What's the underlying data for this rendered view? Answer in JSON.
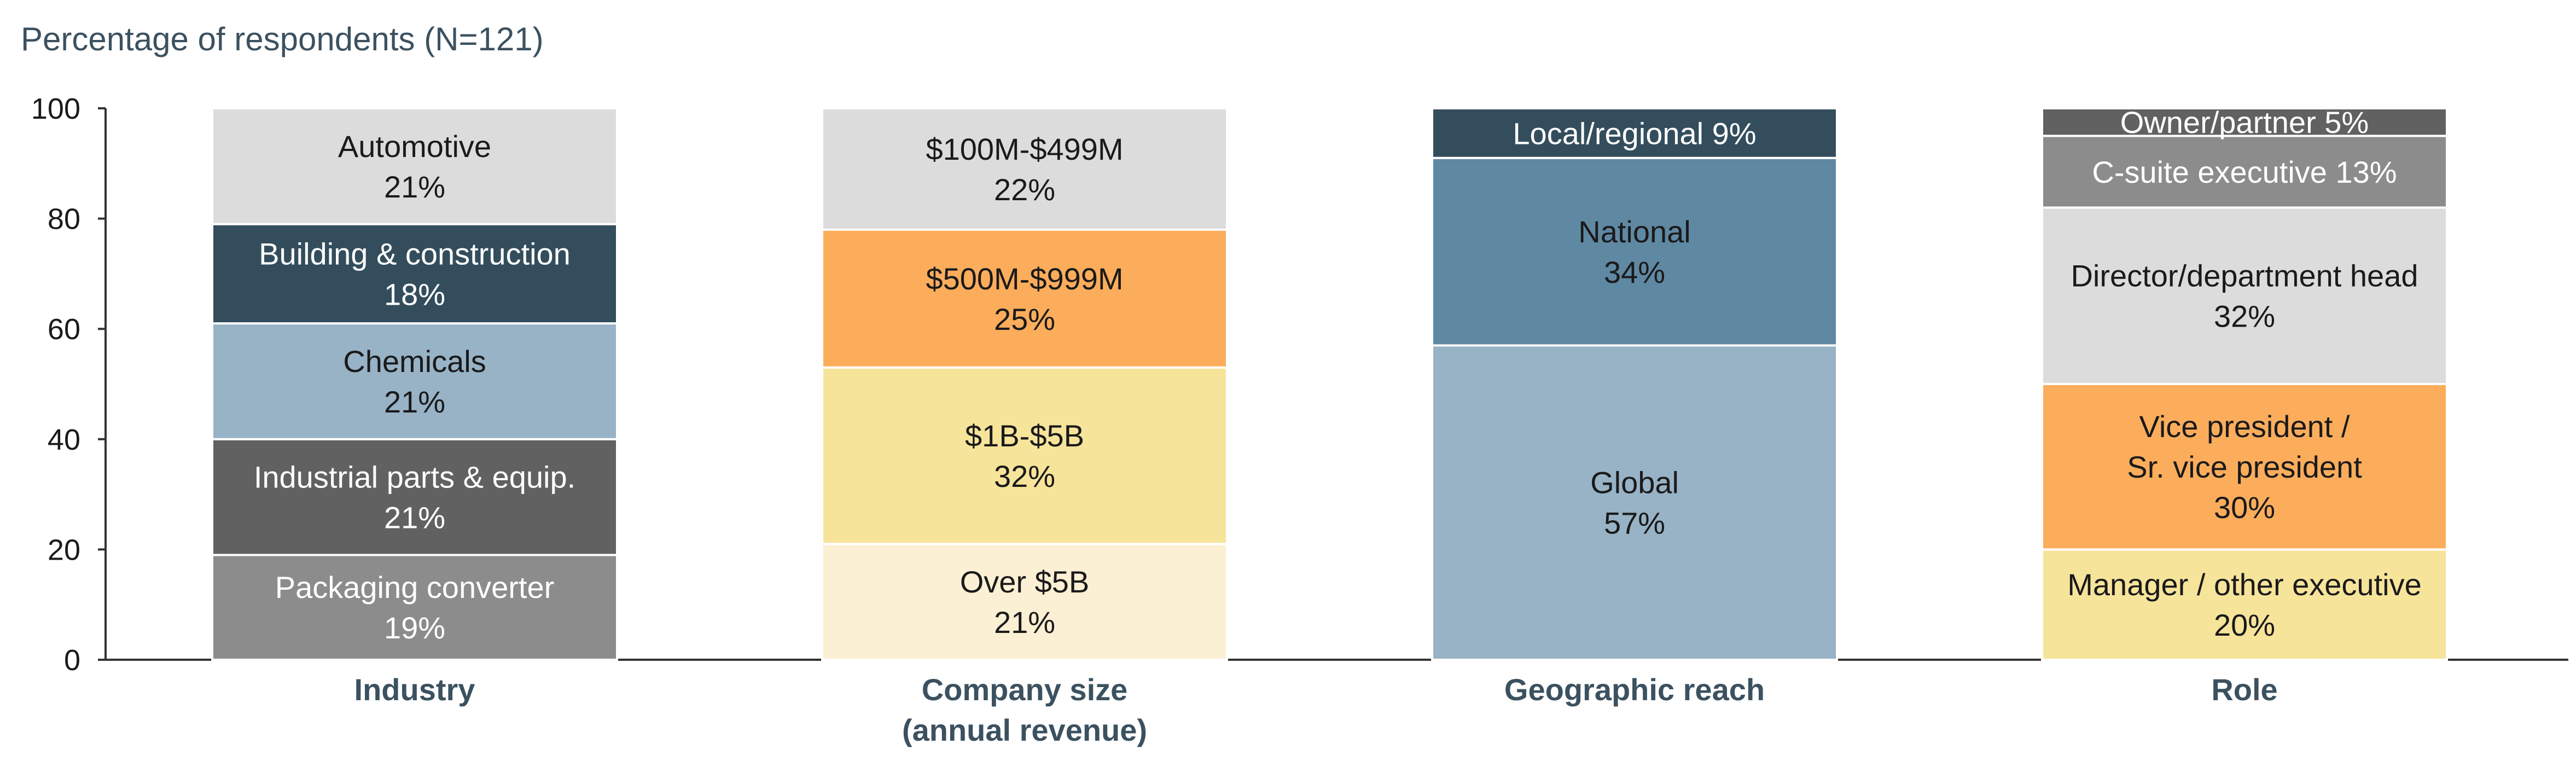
{
  "chart_data": {
    "type": "bar",
    "stacked": true,
    "title": "Percentage of respondents (N=121)",
    "ylim": [
      0,
      100
    ],
    "yticks": [
      0,
      20,
      40,
      60,
      80,
      100
    ],
    "categories": [
      {
        "label_lines": [
          "Industry"
        ],
        "segments": [
          {
            "label_lines": [
              "Packaging converter",
              "19%"
            ],
            "value": 19,
            "color": "#8c8c8c",
            "text_color": "#ffffff"
          },
          {
            "label_lines": [
              "Industrial parts & equip.",
              "21%"
            ],
            "value": 21,
            "color": "#616161",
            "text_color": "#ffffff"
          },
          {
            "label_lines": [
              "Chemicals",
              "21%"
            ],
            "value": 21,
            "color": "#98b2c6",
            "text_color": "#1a1a1a"
          },
          {
            "label_lines": [
              "Building & construction",
              "18%"
            ],
            "value": 18,
            "color": "#334d5c",
            "text_color": "#ffffff"
          },
          {
            "label_lines": [
              "Automotive",
              "21%"
            ],
            "value": 21,
            "color": "#dcdcdc",
            "text_color": "#1a1a1a"
          }
        ]
      },
      {
        "label_lines": [
          "Company size",
          "(annual revenue)"
        ],
        "segments": [
          {
            "label_lines": [
              "Over $5B",
              "21%"
            ],
            "value": 21,
            "color": "#fcf0d4",
            "text_color": "#1a1a1a"
          },
          {
            "label_lines": [
              "$1B-$5B",
              "32%"
            ],
            "value": 32,
            "color": "#f7e49b",
            "text_color": "#1a1a1a"
          },
          {
            "label_lines": [
              "$500M-$999M",
              "25%"
            ],
            "value": 25,
            "color": "#fbad5c",
            "text_color": "#1a1a1a"
          },
          {
            "label_lines": [
              "$100M-$499M",
              "22%"
            ],
            "value": 22,
            "color": "#dcdcdc",
            "text_color": "#1a1a1a"
          }
        ]
      },
      {
        "label_lines": [
          "Geographic reach"
        ],
        "segments": [
          {
            "label_lines": [
              "Global",
              "57%"
            ],
            "value": 57,
            "color": "#98b2c6",
            "text_color": "#1a1a1a"
          },
          {
            "label_lines": [
              "National",
              "34%"
            ],
            "value": 34,
            "color": "#5f88a3",
            "text_color": "#1a1a1a"
          },
          {
            "label_lines": [
              "Local/regional 9%"
            ],
            "value": 9,
            "color": "#334d5c",
            "text_color": "#ffffff"
          }
        ]
      },
      {
        "label_lines": [
          "Role"
        ],
        "segments": [
          {
            "label_lines": [
              "Manager / other executive",
              "20%"
            ],
            "value": 20,
            "color": "#f7e49b",
            "text_color": "#1a1a1a"
          },
          {
            "label_lines": [
              "Vice president /",
              "Sr. vice president",
              "30%"
            ],
            "value": 30,
            "color": "#fbad5c",
            "text_color": "#1a1a1a"
          },
          {
            "label_lines": [
              "Director/department head",
              "32%"
            ],
            "value": 32,
            "color": "#dcdcdc",
            "text_color": "#1a1a1a"
          },
          {
            "label_lines": [
              "C-suite executive 13%"
            ],
            "value": 13,
            "color": "#8c8c8c",
            "text_color": "#ffffff"
          },
          {
            "label_lines": [
              "Owner/partner 5%"
            ],
            "value": 5,
            "color": "#616161",
            "text_color": "#ffffff"
          }
        ]
      }
    ]
  }
}
